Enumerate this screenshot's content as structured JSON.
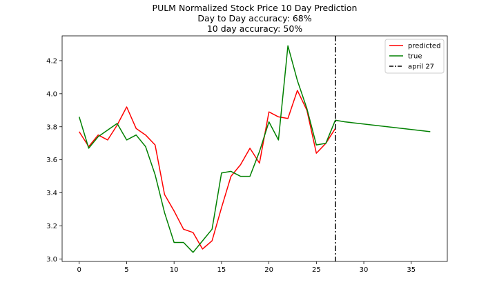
{
  "chart_data": {
    "type": "line",
    "title_lines": [
      "PULM Normalized Stock Price 10 Day Prediction",
      "Day to Day accuracy: 68%",
      "10 day accuracy: 50%"
    ],
    "xlabel": "",
    "ylabel": "",
    "xlim": [
      -1.8,
      38.8
    ],
    "ylim": [
      2.985,
      4.35
    ],
    "x_ticks": [
      0,
      5,
      10,
      15,
      20,
      25,
      30,
      35
    ],
    "y_ticks": [
      3.0,
      3.2,
      3.4,
      3.6,
      3.8,
      4.0,
      4.2
    ],
    "y_tick_labels": [
      "3.0",
      "3.2",
      "3.4",
      "3.6",
      "3.8",
      "4.0",
      "4.2"
    ],
    "grid": false,
    "legend_position": "top-right",
    "series": [
      {
        "name": "predicted",
        "color": "#ff0000",
        "style": "solid",
        "x": [
          0,
          1,
          2,
          3,
          4,
          5,
          6,
          7,
          8,
          9,
          10,
          11,
          12,
          13,
          14,
          15,
          16,
          17,
          18,
          19,
          20,
          21,
          22,
          23,
          24,
          25,
          26,
          27
        ],
        "y": [
          3.77,
          3.68,
          3.75,
          3.72,
          3.81,
          3.92,
          3.79,
          3.75,
          3.69,
          3.39,
          3.29,
          3.18,
          3.16,
          3.06,
          3.11,
          3.31,
          3.5,
          3.57,
          3.67,
          3.58,
          3.89,
          3.86,
          3.85,
          4.02,
          3.9,
          3.64,
          3.7,
          3.79
        ]
      },
      {
        "name": "true",
        "color": "#008000",
        "style": "solid",
        "x": [
          0,
          1,
          2,
          3,
          4,
          5,
          6,
          7,
          8,
          9,
          10,
          11,
          12,
          13,
          14,
          15,
          16,
          17,
          18,
          19,
          20,
          21,
          22,
          23,
          24,
          25,
          26,
          27,
          28,
          37
        ],
        "y": [
          3.86,
          3.67,
          3.74,
          3.78,
          3.82,
          3.72,
          3.75,
          3.68,
          3.51,
          3.28,
          3.1,
          3.1,
          3.04,
          3.11,
          3.18,
          3.52,
          3.53,
          3.5,
          3.5,
          3.65,
          3.83,
          3.72,
          4.29,
          4.08,
          3.91,
          3.69,
          3.7,
          3.84,
          3.83,
          3.77
        ]
      }
    ],
    "vline": {
      "name": "april 27",
      "x": 27,
      "color": "#000000",
      "style": "dashdot"
    }
  }
}
